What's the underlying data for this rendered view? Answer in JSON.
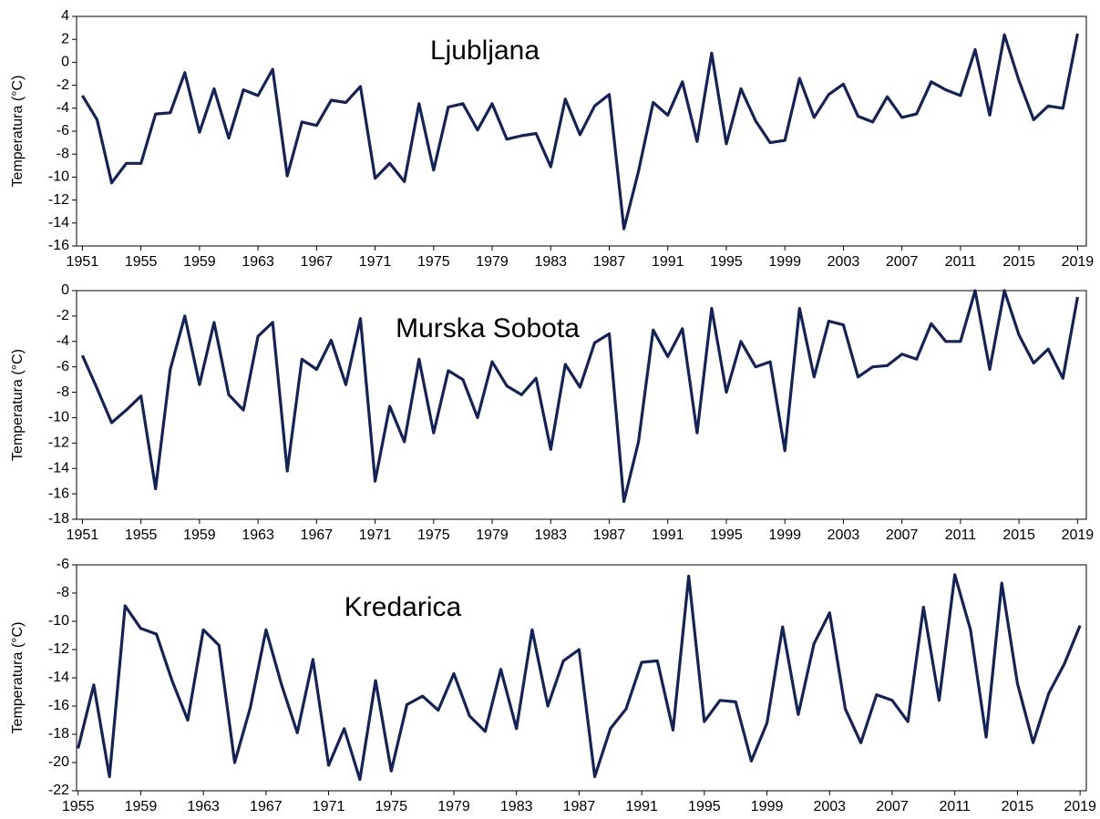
{
  "chart_data": [
    {
      "type": "line",
      "title": "Ljubljana",
      "ylabel": "Temperatura (°C)",
      "color": "#14225a",
      "x": [
        1951,
        1952,
        1953,
        1954,
        1955,
        1956,
        1957,
        1958,
        1959,
        1960,
        1961,
        1962,
        1963,
        1964,
        1965,
        1966,
        1967,
        1968,
        1969,
        1970,
        1971,
        1972,
        1973,
        1974,
        1975,
        1976,
        1977,
        1978,
        1979,
        1980,
        1981,
        1982,
        1983,
        1984,
        1985,
        1986,
        1987,
        1988,
        1989,
        1990,
        1991,
        1992,
        1993,
        1994,
        1995,
        1996,
        1997,
        1998,
        1999,
        2000,
        2001,
        2002,
        2003,
        2004,
        2005,
        2006,
        2007,
        2008,
        2009,
        2010,
        2011,
        2012,
        2013,
        2014,
        2015,
        2016,
        2017,
        2018,
        2019
      ],
      "values": [
        -2.9,
        -5.0,
        -10.5,
        -8.8,
        -8.8,
        -4.5,
        -4.4,
        -0.9,
        -6.1,
        -2.3,
        -6.6,
        -2.4,
        -2.9,
        -0.6,
        -9.9,
        -5.2,
        -5.5,
        -3.3,
        -3.5,
        -2.1,
        -10.1,
        -8.8,
        -10.4,
        -3.6,
        -9.4,
        -3.9,
        -3.6,
        -5.9,
        -3.6,
        -6.7,
        -6.4,
        -6.2,
        -9.1,
        -3.2,
        -6.3,
        -3.8,
        -2.8,
        -14.5,
        -9.5,
        -3.5,
        -4.6,
        -1.7,
        -6.9,
        0.8,
        -7.1,
        -2.3,
        -5.1,
        -7.0,
        -6.8,
        -1.4,
        -4.8,
        -2.8,
        -1.9,
        -4.7,
        -5.2,
        -3.0,
        -4.8,
        -4.5,
        -1.7,
        -2.4,
        -2.9,
        1.1,
        -4.6,
        2.4,
        -1.6,
        -5.0,
        -3.8,
        -4.0,
        2.5
      ],
      "xlim": [
        1950.6,
        2019.6
      ],
      "xticks": [
        1951,
        1955,
        1959,
        1963,
        1967,
        1971,
        1975,
        1979,
        1983,
        1987,
        1991,
        1995,
        1999,
        2003,
        2007,
        2011,
        2015,
        2019
      ],
      "ylim": [
        -16,
        4
      ],
      "yticks": [
        4,
        2,
        0,
        -2,
        -4,
        -6,
        -8,
        -10,
        -12,
        -14,
        -16
      ]
    },
    {
      "type": "line",
      "title": "Murska Sobota",
      "ylabel": "Temperatura (°C)",
      "color": "#14225a",
      "x": [
        1951,
        1952,
        1953,
        1954,
        1955,
        1956,
        1957,
        1958,
        1959,
        1960,
        1961,
        1962,
        1963,
        1964,
        1965,
        1966,
        1967,
        1968,
        1969,
        1970,
        1971,
        1972,
        1973,
        1974,
        1975,
        1976,
        1977,
        1978,
        1979,
        1980,
        1981,
        1982,
        1983,
        1984,
        1985,
        1986,
        1987,
        1988,
        1989,
        1990,
        1991,
        1992,
        1993,
        1994,
        1995,
        1996,
        1997,
        1998,
        1999,
        2000,
        2001,
        2002,
        2003,
        2004,
        2005,
        2006,
        2007,
        2008,
        2009,
        2010,
        2011,
        2012,
        2013,
        2014,
        2015,
        2016,
        2017,
        2018,
        2019
      ],
      "values": [
        -5.1,
        -7.7,
        -10.4,
        -9.4,
        -8.3,
        -15.6,
        -6.2,
        -2.0,
        -7.4,
        -2.5,
        -8.2,
        -9.4,
        -3.6,
        -2.5,
        -14.2,
        -5.4,
        -6.2,
        -3.9,
        -7.4,
        -2.2,
        -15.0,
        -9.1,
        -11.9,
        -5.4,
        -11.2,
        -6.3,
        -7.0,
        -10.0,
        -5.6,
        -7.5,
        -8.2,
        -6.9,
        -12.5,
        -5.8,
        -7.6,
        -4.1,
        -3.4,
        -16.6,
        -11.9,
        -3.1,
        -5.2,
        -3.0,
        -11.2,
        -1.4,
        -8.0,
        -4.0,
        -6.0,
        -5.6,
        -12.6,
        -1.4,
        -6.8,
        -2.4,
        -2.7,
        -6.8,
        -6.0,
        -5.9,
        -5.0,
        -5.4,
        -2.6,
        -4.0,
        -4.0,
        0.0,
        -6.2,
        0.0,
        -3.5,
        -5.7,
        -4.6,
        -6.9,
        -0.5
      ],
      "xlim": [
        1950.6,
        2019.6
      ],
      "xticks": [
        1951,
        1955,
        1959,
        1963,
        1967,
        1971,
        1975,
        1979,
        1983,
        1987,
        1991,
        1995,
        1999,
        2003,
        2007,
        2011,
        2015,
        2019
      ],
      "ylim": [
        -18,
        0
      ],
      "yticks": [
        0,
        -2,
        -4,
        -6,
        -8,
        -10,
        -12,
        -14,
        -16,
        -18
      ]
    },
    {
      "type": "line",
      "title": "Kredarica",
      "ylabel": "Temperatura (°C)",
      "color": "#14225a",
      "x": [
        1955,
        1956,
        1957,
        1958,
        1959,
        1960,
        1961,
        1962,
        1963,
        1964,
        1965,
        1966,
        1967,
        1968,
        1969,
        1970,
        1971,
        1972,
        1973,
        1974,
        1975,
        1976,
        1977,
        1978,
        1979,
        1980,
        1981,
        1982,
        1983,
        1984,
        1985,
        1986,
        1987,
        1988,
        1989,
        1990,
        1991,
        1992,
        1993,
        1994,
        1995,
        1996,
        1997,
        1998,
        1999,
        2000,
        2001,
        2002,
        2003,
        2004,
        2005,
        2006,
        2007,
        2008,
        2009,
        2010,
        2011,
        2012,
        2013,
        2014,
        2015,
        2016,
        2017,
        2018,
        2019
      ],
      "values": [
        -19.0,
        -14.5,
        -21.0,
        -8.9,
        -10.5,
        -10.9,
        -14.2,
        -17.0,
        -10.6,
        -11.7,
        -20.0,
        -16.1,
        -10.6,
        -14.5,
        -17.9,
        -12.7,
        -20.2,
        -17.6,
        -21.2,
        -14.2,
        -20.6,
        -15.9,
        -15.3,
        -16.3,
        -13.7,
        -16.7,
        -17.8,
        -13.4,
        -17.6,
        -10.6,
        -16.0,
        -12.8,
        -12.0,
        -21.0,
        -17.6,
        -16.2,
        -12.9,
        -12.8,
        -17.7,
        -6.8,
        -17.1,
        -15.6,
        -15.7,
        -19.9,
        -17.2,
        -10.4,
        -16.6,
        -11.6,
        -9.4,
        -16.2,
        -18.6,
        -15.2,
        -15.6,
        -17.1,
        -9.0,
        -15.6,
        -6.7,
        -10.6,
        -18.2,
        -7.3,
        -14.4,
        -18.6,
        -15.1,
        -13.0,
        -10.3
      ],
      "xlim": [
        1954.9,
        2019.4
      ],
      "xticks": [
        1955,
        1959,
        1963,
        1967,
        1971,
        1975,
        1979,
        1983,
        1987,
        1991,
        1995,
        1999,
        2003,
        2007,
        2011,
        2015,
        2019
      ],
      "ylim": [
        -22,
        -6
      ],
      "yticks": [
        -6,
        -8,
        -10,
        -12,
        -14,
        -16,
        -18,
        -20,
        -22
      ]
    }
  ]
}
